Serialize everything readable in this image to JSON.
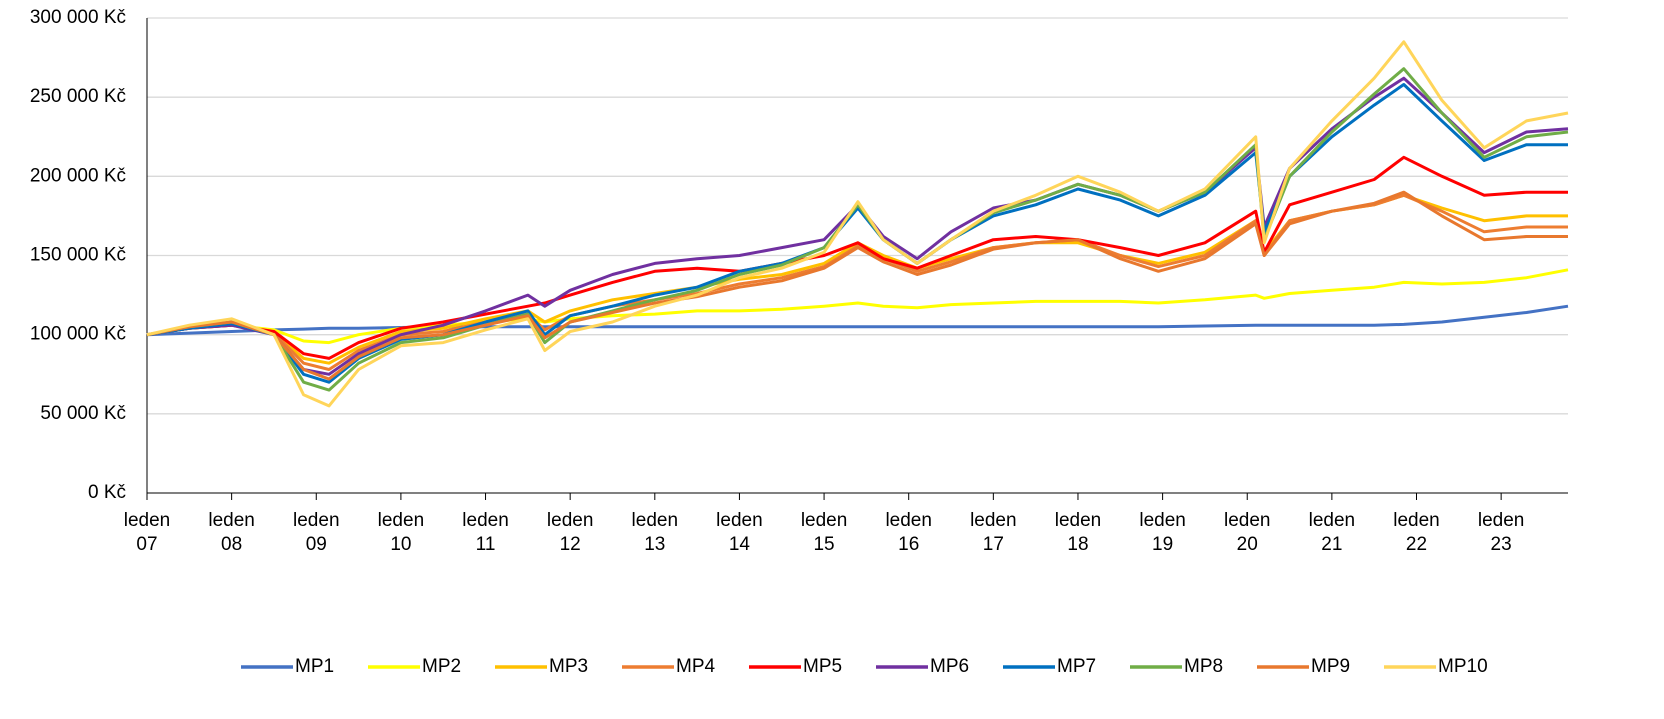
{
  "chart_data": {
    "type": "line",
    "x": [
      2007.0,
      2007.5,
      2008.0,
      2008.5,
      2008.85,
      2009.15,
      2009.5,
      2010.0,
      2010.5,
      2011.0,
      2011.5,
      2011.7,
      2012.0,
      2012.5,
      2013.0,
      2013.5,
      2014.0,
      2014.5,
      2015.0,
      2015.4,
      2015.7,
      2016.1,
      2016.5,
      2017.0,
      2017.5,
      2018.0,
      2018.5,
      2018.95,
      2019.5,
      2020.1,
      2020.2,
      2020.5,
      2021.0,
      2021.5,
      2021.85,
      2022.3,
      2022.8,
      2023.3,
      2023.79
    ],
    "xlim": [
      2007,
      2023.79
    ],
    "xticks": [
      {
        "value": 2007,
        "label": "leden 07"
      },
      {
        "value": 2008,
        "label": "leden 08"
      },
      {
        "value": 2009,
        "label": "leden 09"
      },
      {
        "value": 2010,
        "label": "leden 10"
      },
      {
        "value": 2011,
        "label": "leden 11"
      },
      {
        "value": 2012,
        "label": "leden 12"
      },
      {
        "value": 2013,
        "label": "leden 13"
      },
      {
        "value": 2014,
        "label": "leden 14"
      },
      {
        "value": 2015,
        "label": "leden 15"
      },
      {
        "value": 2016,
        "label": "leden 16"
      },
      {
        "value": 2017,
        "label": "leden 17"
      },
      {
        "value": 2018,
        "label": "leden 18"
      },
      {
        "value": 2019,
        "label": "leden 19"
      },
      {
        "value": 2020,
        "label": "leden 20"
      },
      {
        "value": 2021,
        "label": "leden 21"
      },
      {
        "value": 2022,
        "label": "leden 22"
      },
      {
        "value": 2023,
        "label": "leden 23"
      }
    ],
    "ylim": [
      0,
      300000
    ],
    "yticks": [
      {
        "value": 0,
        "label": "0 Kč"
      },
      {
        "value": 50000,
        "label": "50 000 Kč"
      },
      {
        "value": 100000,
        "label": "100 000 Kč"
      },
      {
        "value": 150000,
        "label": "150 000 Kč"
      },
      {
        "value": 200000,
        "label": "200 000 Kč"
      },
      {
        "value": 250000,
        "label": "250 000 Kč"
      },
      {
        "value": 300000,
        "label": "300 000 Kč"
      }
    ],
    "grid": true,
    "legend": "bottom",
    "series": [
      {
        "name": "MP1",
        "color": "#4472c4",
        "values": [
          100000,
          101000,
          102000,
          103000,
          103500,
          104000,
          104000,
          104500,
          105000,
          105000,
          105000,
          105000,
          105000,
          105000,
          105000,
          105000,
          105000,
          105000,
          105000,
          105000,
          105000,
          105000,
          105000,
          105000,
          105000,
          105000,
          105000,
          105000,
          105500,
          106000,
          106000,
          106000,
          106000,
          106000,
          106500,
          108000,
          111000,
          114000,
          118000
        ]
      },
      {
        "name": "MP2",
        "color": "#ffff00",
        "values": [
          100000,
          104000,
          106000,
          103000,
          96000,
          95000,
          100000,
          104000,
          106000,
          108000,
          110000,
          108000,
          110000,
          112000,
          113000,
          115000,
          115000,
          116000,
          118000,
          120000,
          118000,
          117000,
          119000,
          120000,
          121000,
          121000,
          121000,
          120000,
          122000,
          125000,
          123000,
          126000,
          128000,
          130000,
          133000,
          132000,
          133000,
          136000,
          141000
        ]
      },
      {
        "name": "MP3",
        "color": "#ffc000",
        "values": [
          100000,
          104000,
          106000,
          101000,
          85000,
          82000,
          92000,
          102000,
          104000,
          110000,
          115000,
          108000,
          115000,
          122000,
          126000,
          130000,
          135000,
          138000,
          145000,
          158000,
          150000,
          142000,
          148000,
          155000,
          158000,
          158000,
          150000,
          145000,
          152000,
          172000,
          152000,
          172000,
          178000,
          182000,
          188000,
          180000,
          172000,
          175000,
          175000
        ]
      },
      {
        "name": "MP4",
        "color": "#ed7d31",
        "values": [
          100000,
          104000,
          107000,
          101000,
          82000,
          78000,
          90000,
          100000,
          102000,
          108000,
          113000,
          103000,
          112000,
          118000,
          122000,
          126000,
          132000,
          136000,
          143000,
          156000,
          148000,
          140000,
          146000,
          155000,
          158000,
          160000,
          150000,
          143000,
          150000,
          172000,
          150000,
          172000,
          178000,
          182000,
          188000,
          178000,
          165000,
          168000,
          168000
        ]
      },
      {
        "name": "MP5",
        "color": "#ff0000",
        "values": [
          100000,
          104000,
          106000,
          102000,
          88000,
          85000,
          95000,
          104000,
          108000,
          113000,
          118000,
          120000,
          125000,
          133000,
          140000,
          142000,
          140000,
          145000,
          150000,
          158000,
          148000,
          142000,
          150000,
          160000,
          162000,
          160000,
          155000,
          150000,
          158000,
          178000,
          152000,
          182000,
          190000,
          198000,
          212000,
          200000,
          188000,
          190000,
          190000
        ]
      },
      {
        "name": "MP6",
        "color": "#7030a0",
        "values": [
          100000,
          104000,
          106000,
          100000,
          78000,
          75000,
          88000,
          100000,
          106000,
          115000,
          125000,
          118000,
          128000,
          138000,
          145000,
          148000,
          150000,
          155000,
          160000,
          182000,
          162000,
          148000,
          165000,
          180000,
          185000,
          195000,
          188000,
          178000,
          190000,
          218000,
          168000,
          205000,
          230000,
          250000,
          262000,
          240000,
          215000,
          228000,
          230000
        ]
      },
      {
        "name": "MP7",
        "color": "#0070c0",
        "values": [
          100000,
          104000,
          107000,
          100000,
          75000,
          70000,
          85000,
          97000,
          100000,
          108000,
          115000,
          100000,
          112000,
          118000,
          125000,
          130000,
          140000,
          145000,
          155000,
          180000,
          160000,
          145000,
          160000,
          175000,
          182000,
          192000,
          185000,
          175000,
          188000,
          215000,
          165000,
          200000,
          225000,
          245000,
          258000,
          235000,
          210000,
          220000,
          220000
        ]
      },
      {
        "name": "MP8",
        "color": "#70ad47",
        "values": [
          100000,
          105000,
          108000,
          100000,
          70000,
          65000,
          82000,
          95000,
          98000,
          106000,
          113000,
          95000,
          108000,
          115000,
          122000,
          128000,
          138000,
          144000,
          155000,
          182000,
          160000,
          145000,
          160000,
          177000,
          185000,
          195000,
          188000,
          178000,
          190000,
          220000,
          160000,
          200000,
          228000,
          252000,
          268000,
          240000,
          212000,
          225000,
          228000
        ]
      },
      {
        "name": "MP9",
        "color": "#e8782e",
        "values": [
          100000,
          105000,
          108000,
          100000,
          78000,
          72000,
          86000,
          98000,
          100000,
          106000,
          112000,
          98000,
          108000,
          114000,
          120000,
          124000,
          130000,
          134000,
          142000,
          155000,
          146000,
          138000,
          144000,
          154000,
          158000,
          160000,
          148000,
          140000,
          148000,
          170000,
          150000,
          170000,
          178000,
          183000,
          190000,
          175000,
          160000,
          162000,
          162000
        ]
      },
      {
        "name": "MP10",
        "color": "#ffd55a",
        "values": [
          100000,
          106000,
          110000,
          100000,
          62000,
          55000,
          78000,
          93000,
          95000,
          103000,
          110000,
          90000,
          102000,
          108000,
          118000,
          125000,
          136000,
          142000,
          152000,
          184000,
          160000,
          145000,
          160000,
          178000,
          188000,
          200000,
          190000,
          178000,
          192000,
          225000,
          158000,
          205000,
          235000,
          262000,
          285000,
          248000,
          218000,
          235000,
          240000
        ]
      }
    ]
  }
}
